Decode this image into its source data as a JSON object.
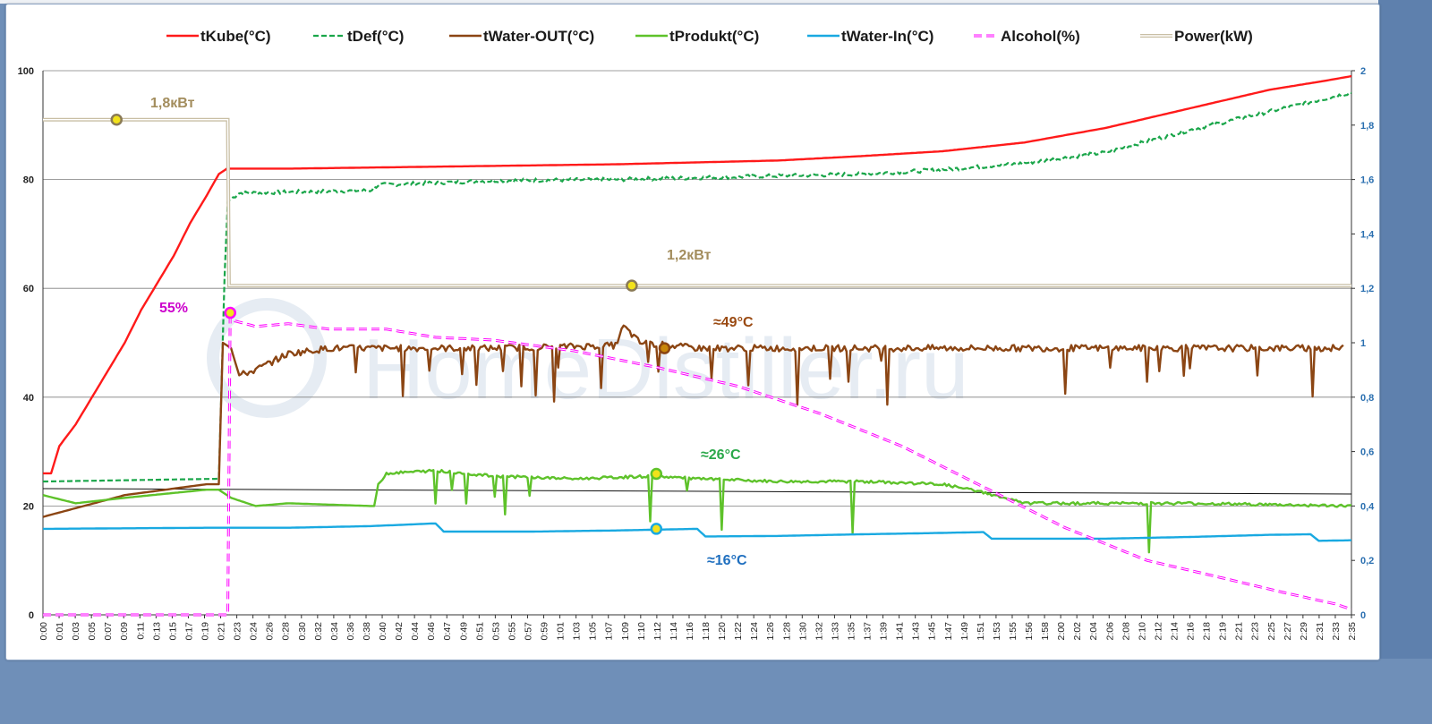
{
  "chart_data": {
    "type": "line",
    "title": "",
    "xlabel": "",
    "ylabel": "",
    "y_left_range": [
      0,
      100
    ],
    "y_left_ticks": [
      "0",
      "20",
      "40",
      "60",
      "80",
      "100"
    ],
    "y_right_range": [
      0,
      2
    ],
    "y_right_ticks": [
      "0",
      "0,2",
      "0,4",
      "0,6",
      "0,8",
      "1",
      "1,2",
      "1,4",
      "1,6",
      "1,8",
      "2"
    ],
    "x_range_minutes": [
      0,
      155
    ],
    "x_ticks": [
      "0:00",
      "0:01",
      "0:03",
      "0:05",
      "0:07",
      "0:09",
      "0:11",
      "0:13",
      "0:15",
      "0:17",
      "0:19",
      "0:21",
      "0:23",
      "0:24",
      "0:26",
      "0:28",
      "0:30",
      "0:32",
      "0:34",
      "0:36",
      "0:38",
      "0:40",
      "0:42",
      "0:44",
      "0:46",
      "0:47",
      "0:49",
      "0:51",
      "0:53",
      "0:55",
      "0:57",
      "0:59",
      "1:01",
      "1:03",
      "1:05",
      "1:07",
      "1:09",
      "1:10",
      "1:12",
      "1:14",
      "1:16",
      "1:18",
      "1:20",
      "1:22",
      "1:24",
      "1:26",
      "1:28",
      "1:30",
      "1:32",
      "1:33",
      "1:35",
      "1:37",
      "1:39",
      "1:41",
      "1:43",
      "1:45",
      "1:47",
      "1:49",
      "1:51",
      "1:53",
      "1:55",
      "1:56",
      "1:58",
      "2:00",
      "2:02",
      "2:04",
      "2:06",
      "2:08",
      "2:10",
      "2:12",
      "2:14",
      "2:16",
      "2:18",
      "2:19",
      "2:21",
      "2:23",
      "2:25",
      "2:27",
      "2:29",
      "2:31",
      "2:33",
      "2:35"
    ],
    "grid": "horizontal",
    "legend_placement": "top",
    "watermark": "HomeDistiller.ru",
    "series": [
      {
        "name": "tKube(°C)",
        "axis": "left",
        "style": "solid",
        "color": "#ff1a1a",
        "points": [
          [
            0,
            26
          ],
          [
            1,
            26
          ],
          [
            2,
            31
          ],
          [
            4,
            35
          ],
          [
            6,
            40
          ],
          [
            8,
            45
          ],
          [
            10,
            50
          ],
          [
            12,
            56
          ],
          [
            14,
            61
          ],
          [
            16,
            66
          ],
          [
            18,
            72
          ],
          [
            20,
            77
          ],
          [
            21.5,
            81
          ],
          [
            22.5,
            82
          ],
          [
            30,
            82
          ],
          [
            50,
            82.4
          ],
          [
            70,
            82.8
          ],
          [
            90,
            83.5
          ],
          [
            100,
            84.3
          ],
          [
            110,
            85.2
          ],
          [
            120,
            86.8
          ],
          [
            130,
            89.5
          ],
          [
            140,
            93
          ],
          [
            150,
            96.5
          ],
          [
            157,
            98.2
          ],
          [
            160,
            99
          ]
        ]
      },
      {
        "name": "tDef(°C)",
        "axis": "left",
        "style": "dashed",
        "color": "#1aa64a",
        "points": [
          [
            0,
            24.5
          ],
          [
            21.5,
            25
          ],
          [
            21.8,
            40
          ],
          [
            22.2,
            62
          ],
          [
            22.6,
            76
          ],
          [
            24,
            77.5
          ],
          [
            40,
            78
          ],
          [
            41,
            79
          ],
          [
            55,
            79.8
          ],
          [
            70,
            80
          ],
          [
            85,
            80.5
          ],
          [
            100,
            81
          ],
          [
            110,
            81.8
          ],
          [
            120,
            83
          ],
          [
            130,
            85
          ],
          [
            140,
            89
          ],
          [
            150,
            92.5
          ],
          [
            160,
            96
          ]
        ]
      },
      {
        "name": "tWater-OUT(°C)",
        "axis": "left",
        "style": "solid",
        "color": "#8b4513",
        "points": [
          [
            0,
            18
          ],
          [
            10,
            22
          ],
          [
            20,
            24
          ],
          [
            21.5,
            24
          ],
          [
            22,
            50
          ],
          [
            23,
            49
          ],
          [
            24,
            44
          ],
          [
            26,
            45
          ],
          [
            30,
            48
          ],
          [
            35,
            49
          ],
          [
            45,
            49
          ],
          [
            55,
            49
          ],
          [
            70,
            49.5
          ],
          [
            71,
            53
          ],
          [
            73,
            50
          ],
          [
            80,
            49
          ],
          [
            100,
            49
          ],
          [
            120,
            49
          ],
          [
            140,
            49
          ],
          [
            159,
            49
          ]
        ]
      },
      {
        "name": "tProdukt(°C)",
        "axis": "left",
        "style": "solid",
        "color": "#5ec22a",
        "points": [
          [
            0,
            22
          ],
          [
            4,
            20.5
          ],
          [
            10,
            21.5
          ],
          [
            20,
            23
          ],
          [
            21.5,
            23
          ],
          [
            23,
            21.5
          ],
          [
            26,
            20
          ],
          [
            30,
            20.5
          ],
          [
            40,
            20
          ],
          [
            40.5,
            20
          ],
          [
            41,
            24
          ],
          [
            42,
            26
          ],
          [
            48,
            26.5
          ],
          [
            55,
            25.5
          ],
          [
            65,
            25
          ],
          [
            75,
            25.5
          ],
          [
            80,
            25
          ],
          [
            90,
            24.5
          ],
          [
            100,
            24.5
          ],
          [
            110,
            24
          ],
          [
            115,
            22.5
          ],
          [
            120,
            20.5
          ],
          [
            130,
            20.5
          ],
          [
            140,
            20.5
          ],
          [
            160,
            20
          ]
        ]
      },
      {
        "name": "tWater-In(°C)",
        "axis": "left",
        "style": "solid",
        "color": "#19a9e1",
        "points": [
          [
            0,
            15.8
          ],
          [
            20,
            16
          ],
          [
            30,
            16
          ],
          [
            40,
            16.3
          ],
          [
            48,
            16.8
          ],
          [
            49,
            15.3
          ],
          [
            60,
            15.3
          ],
          [
            70,
            15.5
          ],
          [
            80,
            15.8
          ],
          [
            81,
            14.4
          ],
          [
            90,
            14.5
          ],
          [
            100,
            14.8
          ],
          [
            108,
            15
          ],
          [
            115,
            15.2
          ],
          [
            116,
            14
          ],
          [
            130,
            14
          ],
          [
            140,
            14.3
          ],
          [
            150,
            14.7
          ],
          [
            155,
            14.8
          ],
          [
            156,
            13.6
          ],
          [
            160,
            13.7
          ]
        ]
      },
      {
        "name": "Alcohol(%)",
        "axis": "left",
        "style": "dashed",
        "color": "#ff00ff",
        "points": [
          [
            0,
            0
          ],
          [
            20,
            0
          ],
          [
            22.6,
            0
          ],
          [
            22.9,
            56
          ],
          [
            23.5,
            54
          ],
          [
            26,
            53
          ],
          [
            30,
            53.5
          ],
          [
            35,
            52.5
          ],
          [
            42,
            52.5
          ],
          [
            48,
            51
          ],
          [
            55,
            50.5
          ],
          [
            65,
            48.5
          ],
          [
            75,
            45.5
          ],
          [
            85,
            42
          ],
          [
            95,
            37
          ],
          [
            105,
            31
          ],
          [
            115,
            23.5
          ],
          [
            125,
            16
          ],
          [
            135,
            10
          ],
          [
            145,
            6.5
          ],
          [
            152,
            4
          ],
          [
            158,
            2
          ],
          [
            160,
            1
          ]
        ]
      },
      {
        "name": "Power(kW)",
        "axis": "right",
        "style": "double",
        "color": "#c9bfa5",
        "points": [
          [
            0,
            1.82
          ],
          [
            22.6,
            1.82
          ],
          [
            22.6,
            1.21
          ],
          [
            160,
            1.21
          ]
        ]
      }
    ],
    "reference_line": {
      "axis": "left",
      "from": [
        0,
        23.2
      ],
      "to": [
        160,
        22.2
      ],
      "color": "#111111"
    },
    "markers": [
      {
        "series": "Power(kW)",
        "x": 9,
        "y": 1.82,
        "color": "#f2e21b"
      },
      {
        "series": "Power(kW)",
        "x": 72,
        "y": 1.21,
        "color": "#f2e21b"
      },
      {
        "series": "Alcohol(%)",
        "x": 22.9,
        "y": 55.5,
        "color": "#f2e21b"
      },
      {
        "series": "tWater-OUT(°C)",
        "x": 76,
        "y": 49,
        "color": "#c8860a"
      },
      {
        "series": "tProdukt(°C)",
        "x": 75,
        "y": 25.9,
        "color": "#f2e21b"
      },
      {
        "series": "tWater-In(°C)",
        "x": 75,
        "y": 15.8,
        "color": "#f2e21b"
      }
    ],
    "annotations": [
      {
        "key": "p18",
        "text": "1,8кВт",
        "color": "#a38d5d"
      },
      {
        "key": "p12",
        "text": "1,2кВт",
        "color": "#a38d5d"
      },
      {
        "key": "alc",
        "text": "55%",
        "color": "#cc00cc"
      },
      {
        "key": "wout",
        "text": "≈49°C",
        "color": "#9a4a12"
      },
      {
        "key": "prod",
        "text": "≈26°C",
        "color": "#2aa84a"
      },
      {
        "key": "win",
        "text": "≈16°C",
        "color": "#1f6fbf"
      }
    ]
  }
}
